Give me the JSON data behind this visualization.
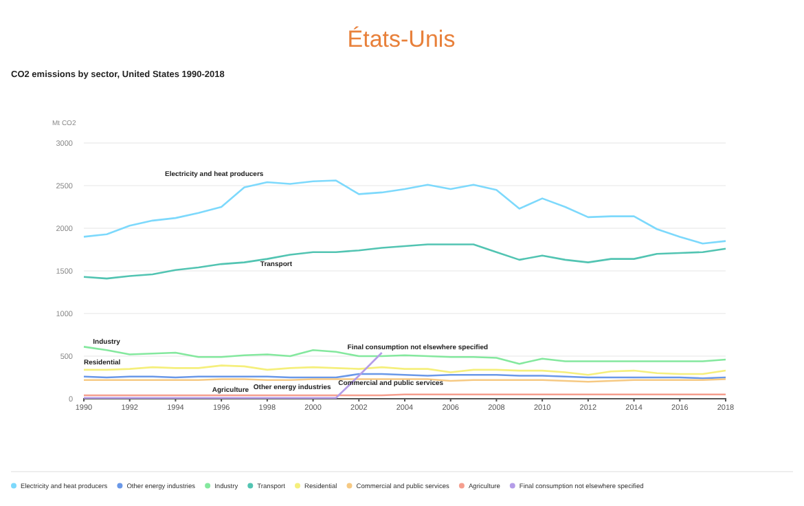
{
  "chart_data": {
    "type": "line",
    "title": "États-Unis",
    "subtitle": "CO2 emissions by sector, United States 1990-2018",
    "ylabel": "Mt CO2",
    "x": [
      1990,
      1991,
      1992,
      1993,
      1994,
      1995,
      1996,
      1997,
      1998,
      1999,
      2000,
      2001,
      2002,
      2003,
      2004,
      2005,
      2006,
      2007,
      2008,
      2009,
      2010,
      2011,
      2012,
      2013,
      2014,
      2015,
      2016,
      2017,
      2018
    ],
    "xlim": [
      1990,
      2018
    ],
    "xticks": [
      1990,
      1992,
      1994,
      1996,
      1998,
      2000,
      2002,
      2004,
      2006,
      2008,
      2010,
      2012,
      2014,
      2016,
      2018
    ],
    "ylim": [
      0,
      3000
    ],
    "yticks": [
      0,
      500,
      1000,
      1500,
      2000,
      2500,
      3000
    ],
    "grid": "y",
    "legend": "bottom",
    "marker": "none",
    "line_style": "solid",
    "series": [
      {
        "name": "Electricity and heat producers",
        "color": "#7dd9fc",
        "values": [
          1900,
          1930,
          2030,
          2090,
          2120,
          2180,
          2250,
          2480,
          2540,
          2520,
          2550,
          2560,
          2400,
          2420,
          2460,
          2510,
          2460,
          2510,
          2450,
          2230,
          2350,
          2250,
          2130,
          2140,
          2140,
          1990,
          1900,
          1820,
          1850
        ]
      },
      {
        "name": "Other energy industries",
        "color": "#6a98e8",
        "values": [
          260,
          250,
          260,
          260,
          250,
          260,
          260,
          260,
          260,
          250,
          250,
          250,
          290,
          290,
          280,
          270,
          280,
          280,
          280,
          270,
          270,
          260,
          250,
          250,
          250,
          250,
          250,
          240,
          250
        ]
      },
      {
        "name": "Industry",
        "color": "#84e89e",
        "values": [
          610,
          570,
          520,
          530,
          540,
          490,
          490,
          510,
          520,
          500,
          570,
          550,
          500,
          500,
          510,
          500,
          490,
          490,
          480,
          410,
          470,
          440,
          440,
          440,
          440,
          440,
          440,
          440,
          460
        ]
      },
      {
        "name": "Transport",
        "color": "#52c4b2",
        "values": [
          1430,
          1410,
          1440,
          1460,
          1510,
          1540,
          1580,
          1600,
          1640,
          1690,
          1720,
          1720,
          1740,
          1770,
          1790,
          1810,
          1810,
          1810,
          1720,
          1630,
          1680,
          1630,
          1600,
          1640,
          1640,
          1700,
          1710,
          1720,
          1760
        ]
      },
      {
        "name": "Residential",
        "color": "#f5ef7c",
        "values": [
          340,
          340,
          350,
          370,
          360,
          360,
          390,
          380,
          340,
          360,
          370,
          360,
          350,
          370,
          350,
          350,
          310,
          340,
          340,
          330,
          330,
          310,
          280,
          320,
          330,
          300,
          290,
          290,
          330
        ]
      },
      {
        "name": "Commercial and public services",
        "color": "#f6c983",
        "values": [
          220,
          220,
          220,
          220,
          220,
          220,
          230,
          230,
          220,
          220,
          230,
          230,
          230,
          230,
          230,
          230,
          210,
          220,
          220,
          220,
          220,
          210,
          200,
          210,
          220,
          220,
          220,
          220,
          230
        ]
      },
      {
        "name": "Agriculture",
        "color": "#f59e8e",
        "values": [
          40,
          40,
          40,
          40,
          40,
          40,
          40,
          40,
          40,
          40,
          40,
          40,
          40,
          40,
          50,
          50,
          50,
          50,
          50,
          50,
          50,
          50,
          50,
          50,
          50,
          50,
          50,
          50,
          50
        ]
      },
      {
        "name": "Final consumption not elsewhere specified",
        "color": "#b49ce8",
        "values": [
          10,
          10,
          10,
          10,
          10,
          10,
          10,
          10,
          10,
          10,
          10,
          10,
          270,
          540,
          null,
          null,
          null,
          null,
          null,
          null,
          null,
          null,
          null,
          null,
          null,
          null,
          null,
          null,
          null
        ]
      }
    ],
    "annotations": [
      "Electricity and heat producers",
      {
        "text": "Transport",
        "x": 1997.7,
        "y": 1560
      },
      {
        "text": "Industry",
        "x": 1990.4,
        "y": 645
      },
      {
        "text": "Residential",
        "x": 1990,
        "y": 400
      },
      {
        "text": "Final consumption not elsewhere specified",
        "x": 2001.5,
        "y": 580
      },
      {
        "text": "Agriculture",
        "x": 1995.6,
        "y": 80
      },
      {
        "text": "Other energy industries",
        "x": 1997.4,
        "y": 110
      },
      {
        "text": "Commercial and public services",
        "x": 2001.1,
        "y": 160
      }
    ]
  }
}
